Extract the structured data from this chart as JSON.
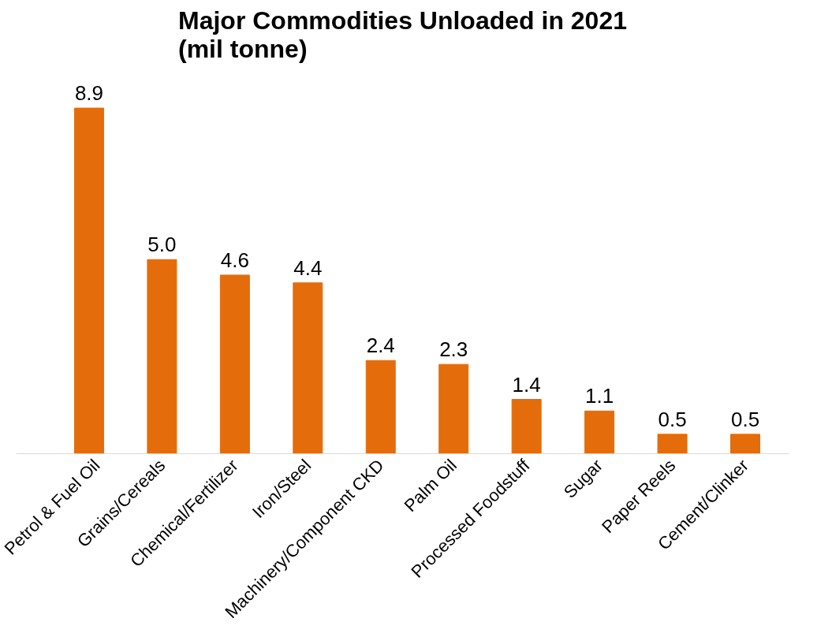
{
  "chart_data": {
    "type": "bar",
    "title": "Major Commodities Unloaded in 2021\n(mil tonne)",
    "categories": [
      "Petrol & Fuel Oil",
      "Grains/Cereals",
      "Chemical/Fertilizer",
      "Iron/Steel",
      "Machinery/Component CKD",
      "Palm Oil",
      "Processed Foodstuff",
      "Sugar",
      "Paper Reels",
      "Cement/Clinker"
    ],
    "values": [
      8.9,
      5.0,
      4.6,
      4.4,
      2.4,
      2.3,
      1.4,
      1.1,
      0.5,
      0.5
    ],
    "value_labels": [
      "8.9",
      "5.0",
      "4.6",
      "4.4",
      "2.4",
      "2.3",
      "1.4",
      "1.1",
      "0.5",
      "0.5"
    ],
    "color": "#e46c0a",
    "grid": false
  }
}
